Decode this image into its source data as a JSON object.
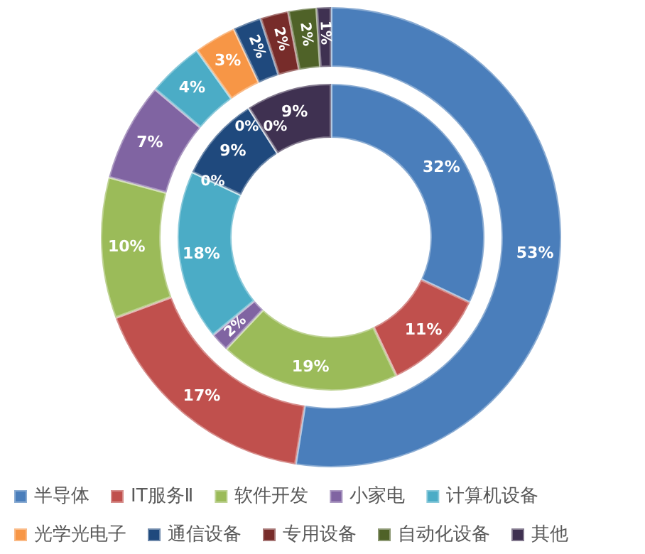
{
  "chart_data": {
    "type": "donut",
    "categories": [
      "半导体",
      "IT服务Ⅱ",
      "软件开发",
      "小家电",
      "计算机设备",
      "光学光电子",
      "通信设备",
      "专用设备",
      "自动化设备",
      "其他"
    ],
    "colors": [
      "#4a7ebb",
      "#c0504d",
      "#9bbb59",
      "#8064a2",
      "#4bacc6",
      "#f79646",
      "#1f497d",
      "#772c2a",
      "#4f6228",
      "#3f3151"
    ],
    "series": [
      {
        "values": [
          53,
          17,
          10,
          7,
          4,
          3,
          2,
          2,
          2,
          1
        ],
        "value_labels": [
          "53%",
          "17%",
          "10%",
          "7%",
          "4%",
          "3%",
          "2%",
          "2%",
          "2%",
          "1%"
        ]
      },
      {
        "values": [
          32,
          11,
          19,
          2,
          18,
          0,
          9,
          0,
          0,
          9
        ],
        "value_labels": [
          "32%",
          "11%",
          "19%",
          "2%",
          "18%",
          "0%",
          "9%",
          "0%",
          "0%",
          "9%"
        ]
      }
    ],
    "legend": "bottom"
  }
}
